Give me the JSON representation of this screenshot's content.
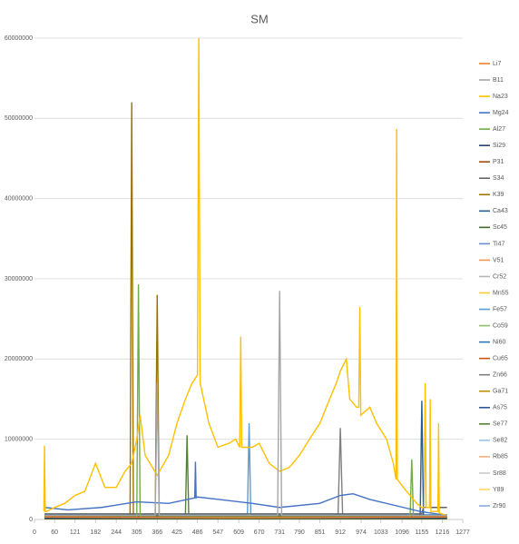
{
  "chart_data": {
    "type": "line",
    "title": "SM",
    "xlim": [
      0,
      1277
    ],
    "xticks": [
      0,
      60,
      121,
      182,
      244,
      305,
      366,
      425,
      486,
      547,
      609,
      670,
      731,
      790,
      851,
      912,
      974,
      1033,
      1096,
      1155,
      1216,
      1277
    ],
    "ylim": [
      0,
      60000000
    ],
    "yticks": [
      0,
      10000000,
      20000000,
      30000000,
      40000000,
      50000000,
      60000000
    ],
    "grid": true,
    "legend": "right",
    "series": [
      {
        "name": "Li7",
        "color": "#ED7D31",
        "x": [
          30,
          600,
          1230
        ],
        "values": [
          300000,
          200000,
          300000
        ]
      },
      {
        "name": "B11",
        "color": "#A5A5A5",
        "x": [
          30,
          360,
          366,
          372,
          725,
          731,
          737,
          1230
        ],
        "values": [
          500000,
          500000,
          17000000,
          500000,
          500000,
          28500000,
          500000,
          500000
        ]
      },
      {
        "name": "Na23",
        "color": "#FFC000",
        "x": [
          28,
          30,
          32,
          35,
          60,
          90,
          121,
          150,
          182,
          210,
          244,
          270,
          290,
          305,
          315,
          330,
          366,
          400,
          425,
          450,
          470,
          486,
          490,
          494,
          520,
          547,
          580,
          600,
          612,
          615,
          618,
          650,
          670,
          700,
          731,
          760,
          790,
          820,
          851,
          880,
          900,
          912,
          930,
          940,
          960,
          967,
          970,
          973,
          1000,
          1020,
          1050,
          1070,
          1078,
          1080,
          1082,
          1100,
          1120,
          1140,
          1155,
          1162,
          1165,
          1168,
          1178,
          1180,
          1182,
          1203,
          1205,
          1207,
          1230
        ],
        "values": [
          1000000,
          9200000,
          1000000,
          1000000,
          1500000,
          2000000,
          3000000,
          3500000,
          7000000,
          4000000,
          4000000,
          6000000,
          7000000,
          10000000,
          13000000,
          8000000,
          5500000,
          8000000,
          12000000,
          15000000,
          17000000,
          18000000,
          60000000,
          17000000,
          12000000,
          9000000,
          9500000,
          10000000,
          9000000,
          22800000,
          9000000,
          9000000,
          9500000,
          7000000,
          6000000,
          6500000,
          8000000,
          10000000,
          12000000,
          15000000,
          17000000,
          18500000,
          20000000,
          15000000,
          14000000,
          14000000,
          26500000,
          13000000,
          14000000,
          12000000,
          10000000,
          7000000,
          5000000,
          48700000,
          5000000,
          4000000,
          3000000,
          2000000,
          1500000,
          1500000,
          17000000,
          1500000,
          1500000,
          15000000,
          1000000,
          1000000,
          12000000,
          800000,
          500000
        ]
      },
      {
        "name": "Mg24",
        "color": "#4472C4",
        "x": [
          30,
          100,
          200,
          305,
          400,
          478,
          480,
          482,
          486,
          550,
          650,
          731,
          850,
          912,
          950,
          1000,
          1100,
          1150,
          1230
        ],
        "values": [
          1500000,
          1200000,
          1500000,
          2200000,
          2000000,
          2700000,
          7200000,
          2700000,
          2800000,
          2500000,
          2000000,
          1500000,
          2000000,
          3000000,
          3200000,
          2500000,
          1500000,
          1000000,
          500000
        ]
      },
      {
        "name": "Al27",
        "color": "#70AD47",
        "x": [
          30,
          305,
          310,
          315,
          1120,
          1125,
          1130,
          1230
        ],
        "values": [
          300000,
          300000,
          29300000,
          300000,
          300000,
          7500000,
          300000,
          300000
        ]
      },
      {
        "name": "Si29",
        "color": "#264478",
        "x": [
          30,
          1230
        ],
        "values": [
          200000,
          200000
        ]
      },
      {
        "name": "P31",
        "color": "#9E480E",
        "x": [
          30,
          1230
        ],
        "values": [
          400000,
          400000
        ]
      },
      {
        "name": "S34",
        "color": "#636363",
        "x": [
          30,
          600,
          1155,
          1160,
          1230
        ],
        "values": [
          700000,
          700000,
          700000,
          1500000,
          1500000
        ]
      },
      {
        "name": "K39",
        "color": "#997300",
        "x": [
          30,
          285,
          290,
          295,
          360,
          366,
          372,
          1230
        ],
        "values": [
          300000,
          300000,
          52000000,
          300000,
          300000,
          28000000,
          300000,
          300000
        ]
      },
      {
        "name": "Ca43",
        "color": "#255E91",
        "x": [
          30,
          1150,
          1155,
          1160,
          1230
        ],
        "values": [
          200000,
          200000,
          14800000,
          200000,
          200000
        ]
      },
      {
        "name": "Sc45",
        "color": "#43682B",
        "x": [
          30,
          1230
        ],
        "values": [
          100000,
          100000
        ]
      },
      {
        "name": "Ti47",
        "color": "#698ED0",
        "x": [
          30,
          1230
        ],
        "values": [
          150000,
          150000
        ]
      },
      {
        "name": "V51",
        "color": "#F1975A",
        "x": [
          30,
          1230
        ],
        "values": [
          100000,
          100000
        ]
      },
      {
        "name": "Cr52",
        "color": "#B7B7B7",
        "x": [
          30,
          1230
        ],
        "values": [
          250000,
          250000
        ]
      },
      {
        "name": "Mn55",
        "color": "#FFCD33",
        "x": [
          30,
          1230
        ],
        "values": [
          200000,
          200000
        ]
      },
      {
        "name": "Fe57",
        "color": "#5B9BD5",
        "x": [
          30,
          635,
          640,
          645,
          1230
        ],
        "values": [
          600000,
          600000,
          12000000,
          600000,
          600000
        ]
      },
      {
        "name": "Co59",
        "color": "#8CC168",
        "x": [
          30,
          1230
        ],
        "values": [
          300000,
          300000
        ]
      },
      {
        "name": "Ni60",
        "color": "#2E75B6",
        "x": [
          30,
          1230
        ],
        "values": [
          150000,
          150000
        ]
      },
      {
        "name": "Cu65",
        "color": "#C55A11",
        "x": [
          30,
          1230
        ],
        "values": [
          100000,
          100000
        ]
      },
      {
        "name": "Zn66",
        "color": "#7F7F7F",
        "x": [
          30,
          905,
          912,
          919,
          1230
        ],
        "values": [
          300000,
          300000,
          11400000,
          300000,
          300000
        ]
      },
      {
        "name": "Ga71",
        "color": "#BF9000",
        "x": [
          30,
          1230
        ],
        "values": [
          200000,
          200000
        ]
      },
      {
        "name": "As75",
        "color": "#2F5597",
        "x": [
          30,
          1230
        ],
        "values": [
          100000,
          100000
        ]
      },
      {
        "name": "Se77",
        "color": "#548235",
        "x": [
          30,
          450,
          455,
          460,
          1230
        ],
        "values": [
          500000,
          500000,
          10500000,
          500000,
          500000
        ]
      },
      {
        "name": "Se82",
        "color": "#9DC3E6",
        "x": [
          30,
          1230
        ],
        "values": [
          150000,
          150000
        ]
      },
      {
        "name": "Rb85",
        "color": "#F4B183",
        "x": [
          30,
          1230
        ],
        "values": [
          100000,
          100000
        ]
      },
      {
        "name": "Sr88",
        "color": "#C9C9C9",
        "x": [
          30,
          1230
        ],
        "values": [
          200000,
          200000
        ]
      },
      {
        "name": "Y89",
        "color": "#FFD966",
        "x": [
          30,
          1230
        ],
        "values": [
          150000,
          150000
        ]
      },
      {
        "name": "Zr90",
        "color": "#8FAADC",
        "x": [
          30,
          1230
        ],
        "values": [
          100000,
          100000
        ]
      }
    ]
  }
}
